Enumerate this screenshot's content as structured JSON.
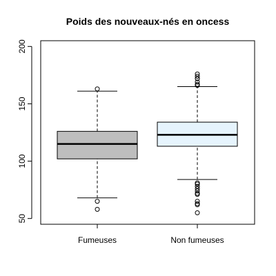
{
  "chart_data": {
    "type": "boxplot",
    "title": "Poids des nouveaux-nés en oncess",
    "xlabel": "",
    "ylabel": "",
    "ylim": [
      45,
      205
    ],
    "yticks": [
      50,
      100,
      150,
      200
    ],
    "grid": false,
    "categories": [
      "Fumeuses",
      "Non fumeuses"
    ],
    "boxes": [
      {
        "name": "Fumeuses",
        "fill": "#bebebe",
        "whisker_low": 68,
        "q1": 102,
        "median": 115,
        "q3": 126,
        "whisker_high": 161,
        "outliers": [
          163,
          65,
          58
        ]
      },
      {
        "name": "Non fumeuses",
        "fill": "#e6f4fd",
        "whisker_low": 84,
        "q1": 113,
        "median": 123,
        "q3": 134,
        "whisker_high": 165,
        "outliers": [
          176,
          174,
          172,
          172,
          169,
          167,
          166,
          81,
          80,
          78,
          76,
          74,
          72,
          71,
          65,
          63,
          62,
          55
        ]
      }
    ]
  }
}
